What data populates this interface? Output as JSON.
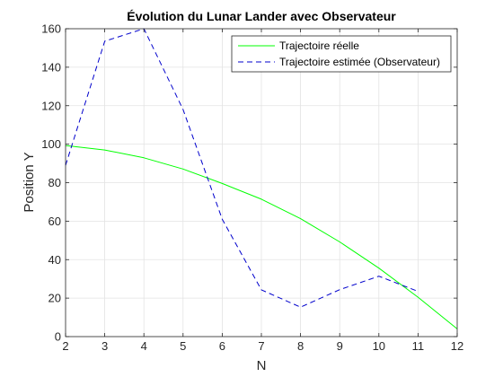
{
  "chart_data": {
    "type": "line",
    "title": "Évolution du Lunar Lander avec Observateur",
    "xlabel": "N",
    "ylabel": "Position Y",
    "xlim": [
      2,
      12
    ],
    "ylim": [
      0,
      160
    ],
    "xticks": [
      2,
      3,
      4,
      5,
      6,
      7,
      8,
      9,
      10,
      11,
      12
    ],
    "yticks": [
      0,
      20,
      40,
      60,
      80,
      100,
      120,
      140,
      160
    ],
    "grid": true,
    "legend_position": "top-right",
    "series": [
      {
        "name": "Trajectoire réelle",
        "color": "#00ff00",
        "style": "solid",
        "x": [
          2,
          3,
          4,
          5,
          6,
          7,
          8,
          9,
          10,
          11,
          12
        ],
        "y": [
          99.3,
          97,
          92.9,
          87.1,
          79.6,
          71.4,
          61.3,
          49.2,
          35.6,
          20.5,
          4
        ]
      },
      {
        "name": "Trajectoire estimée (Observateur)",
        "color": "#0000cc",
        "style": "dashed",
        "x": [
          2,
          3,
          4,
          5,
          6,
          7,
          8,
          9,
          10,
          11
        ],
        "y": [
          89,
          153.5,
          160,
          118,
          61,
          24.3,
          15.3,
          24.4,
          31.4,
          23.5
        ]
      }
    ]
  }
}
